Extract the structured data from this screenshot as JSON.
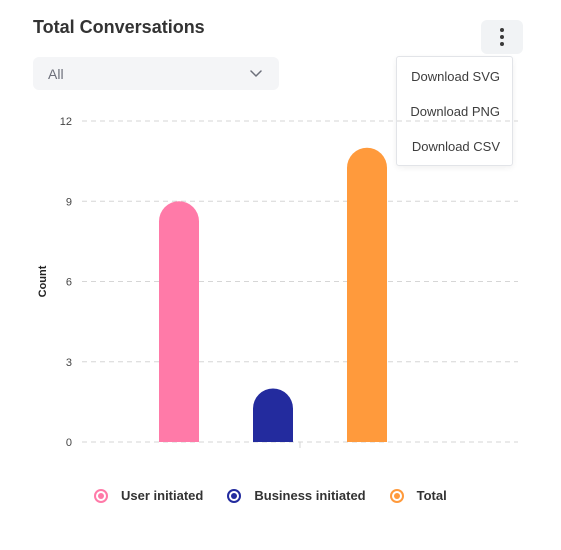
{
  "header": {
    "title": "Total Conversations"
  },
  "filter": {
    "value": "All"
  },
  "menu": {
    "items": [
      "Download SVG",
      "Download PNG",
      "Download CSV"
    ]
  },
  "chart_data": {
    "type": "bar",
    "title": "Total Conversations",
    "xlabel": "",
    "ylabel": "Count",
    "ylim": [
      0,
      12
    ],
    "yticks": [
      0,
      3,
      6,
      9,
      12
    ],
    "grid": true,
    "legend_position": "bottom",
    "series": [
      {
        "name": "User initiated",
        "value": 9,
        "color": "#ff7aa8"
      },
      {
        "name": "Business initiated",
        "value": 2,
        "color": "#232b9e"
      },
      {
        "name": "Total",
        "value": 11,
        "color": "#ff9a3c"
      }
    ]
  }
}
